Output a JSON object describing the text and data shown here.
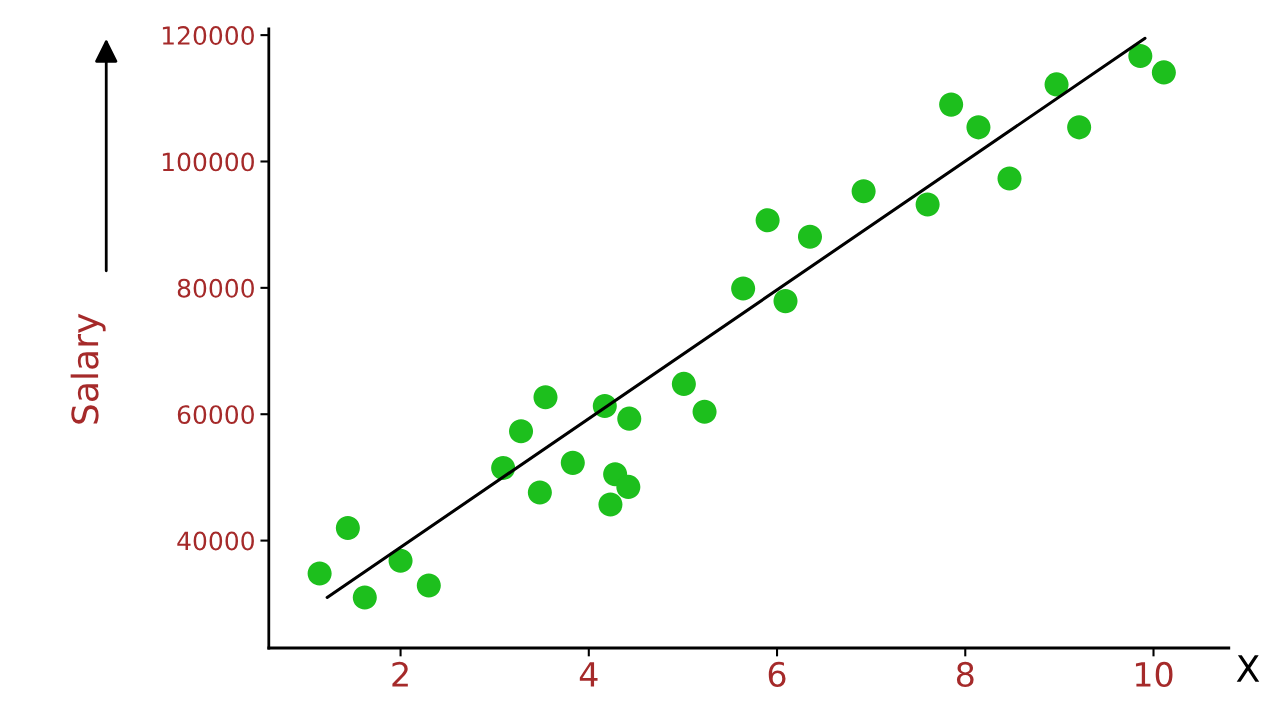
{
  "chart_data": {
    "type": "scatter",
    "xlabel": "X",
    "ylabel": "Salary",
    "xlim": [
      0.6,
      10.8
    ],
    "ylim": [
      23000,
      121000
    ],
    "xticks": [
      2,
      4,
      6,
      8,
      10
    ],
    "yticks": [
      40000,
      60000,
      80000,
      100000,
      120000
    ],
    "grid": false,
    "series": [
      {
        "marker": "circle",
        "color": "#1dbf1d",
        "x": [
          1.14,
          1.44,
          1.62,
          2.0,
          2.3,
          3.09,
          3.28,
          3.48,
          3.54,
          3.83,
          4.17,
          4.23,
          4.28,
          4.43,
          4.42,
          5.01,
          5.23,
          5.64,
          5.9,
          6.09,
          6.35,
          6.92,
          7.6,
          7.85,
          8.14,
          8.47,
          8.97,
          9.21,
          9.86,
          10.11
        ],
        "values": [
          34800,
          42000,
          31000,
          36800,
          32900,
          51500,
          57300,
          47600,
          62700,
          52300,
          61300,
          45700,
          50500,
          59300,
          48500,
          64800,
          60400,
          79900,
          90700,
          77900,
          88100,
          95300,
          93200,
          109000,
          105400,
          97300,
          112200,
          105400,
          116700,
          114100
        ]
      },
      {
        "type": "line",
        "color": "#000000",
        "x": [
          1.22,
          9.91
        ],
        "values": [
          31000,
          119500
        ]
      }
    ]
  }
}
